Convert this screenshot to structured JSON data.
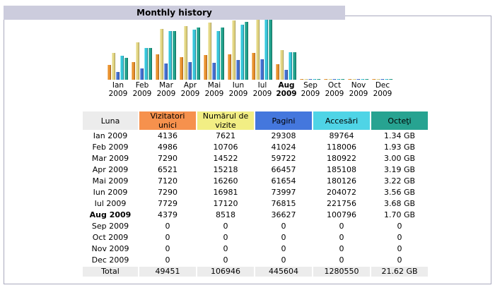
{
  "title": "Monthly history",
  "colors": {
    "tab_bg": "#CCCCDD",
    "panel_border": "#A9A9BE",
    "luna_header_bg": "#ECECEC",
    "total_row_bg": "#ECECEC"
  },
  "chart_data": {
    "type": "bar",
    "title": "Monthly history",
    "categories": [
      "Ian 2009",
      "Feb 2009",
      "Mar 2009",
      "Apr 2009",
      "Mai 2009",
      "Iun 2009",
      "Iul 2009",
      "Aug 2009",
      "Sep 2009",
      "Oct 2009",
      "Nov 2009",
      "Dec 2009"
    ],
    "highlight_category": "Aug 2009",
    "legend_position": "none",
    "grid": false,
    "series": [
      {
        "name": "Vizitatori unici",
        "scale_group": "visits",
        "color": "#E8912F",
        "light": "#F4BE7C",
        "dark": "#A5661D",
        "values": [
          4136,
          4986,
          7290,
          6521,
          7120,
          7290,
          7729,
          4379,
          0,
          0,
          0,
          0
        ]
      },
      {
        "name": "Numărul de vizite",
        "scale_group": "visits",
        "color": "#E2D584",
        "light": "#F4EFBE",
        "dark": "#A79B52",
        "values": [
          7621,
          10706,
          14522,
          15218,
          16260,
          16981,
          17120,
          8518,
          0,
          0,
          0,
          0
        ]
      },
      {
        "name": "Pagini",
        "scale_group": "hits",
        "color": "#4470D0",
        "light": "#8FAAE8",
        "dark": "#2A4789",
        "values": [
          29308,
          41024,
          59722,
          66457,
          61654,
          73997,
          76815,
          36627,
          0,
          0,
          0,
          0
        ]
      },
      {
        "name": "Accesări",
        "scale_group": "hits",
        "color": "#38C6DA",
        "light": "#8DE5F1",
        "dark": "#238292",
        "values": [
          89764,
          118006,
          180922,
          185108,
          180126,
          204072,
          221756,
          100796,
          0,
          0,
          0,
          0
        ]
      },
      {
        "name": "Octeţi (GB)",
        "scale_group": "bytes",
        "color": "#21A18C",
        "light": "#69C7B5",
        "dark": "#14705E",
        "values": [
          1.34,
          1.93,
          3.0,
          3.19,
          3.22,
          3.56,
          3.68,
          1.7,
          0,
          0,
          0,
          0
        ]
      }
    ]
  },
  "table": {
    "columns": [
      {
        "label": "Luna",
        "color": "#ECECEC"
      },
      {
        "label": "Vizitatori unici",
        "color": "#F6914D"
      },
      {
        "label": "Numărul de vizite",
        "color": "#F2EE84"
      },
      {
        "label": "Pagini",
        "color": "#4477DD"
      },
      {
        "label": "Accesări",
        "color": "#4FD4E6"
      },
      {
        "label": "Octeţi",
        "color": "#27A391"
      }
    ],
    "rows": [
      {
        "month": "Ian 2009",
        "bold": false,
        "values": [
          "4136",
          "7621",
          "29308",
          "89764",
          "1.34 GB"
        ]
      },
      {
        "month": "Feb 2009",
        "bold": false,
        "values": [
          "4986",
          "10706",
          "41024",
          "118006",
          "1.93 GB"
        ]
      },
      {
        "month": "Mar 2009",
        "bold": false,
        "values": [
          "7290",
          "14522",
          "59722",
          "180922",
          "3.00 GB"
        ]
      },
      {
        "month": "Apr 2009",
        "bold": false,
        "values": [
          "6521",
          "15218",
          "66457",
          "185108",
          "3.19 GB"
        ]
      },
      {
        "month": "Mai 2009",
        "bold": false,
        "values": [
          "7120",
          "16260",
          "61654",
          "180126",
          "3.22 GB"
        ]
      },
      {
        "month": "Iun 2009",
        "bold": false,
        "values": [
          "7290",
          "16981",
          "73997",
          "204072",
          "3.56 GB"
        ]
      },
      {
        "month": "Iul 2009",
        "bold": false,
        "values": [
          "7729",
          "17120",
          "76815",
          "221756",
          "3.68 GB"
        ]
      },
      {
        "month": "Aug 2009",
        "bold": true,
        "values": [
          "4379",
          "8518",
          "36627",
          "100796",
          "1.70 GB"
        ]
      },
      {
        "month": "Sep 2009",
        "bold": false,
        "values": [
          "0",
          "0",
          "0",
          "0",
          "0"
        ]
      },
      {
        "month": "Oct 2009",
        "bold": false,
        "values": [
          "0",
          "0",
          "0",
          "0",
          "0"
        ]
      },
      {
        "month": "Nov 2009",
        "bold": false,
        "values": [
          "0",
          "0",
          "0",
          "0",
          "0"
        ]
      },
      {
        "month": "Dec 2009",
        "bold": false,
        "values": [
          "0",
          "0",
          "0",
          "0",
          "0"
        ]
      }
    ],
    "total_row": {
      "label": "Total",
      "values": [
        "49451",
        "106946",
        "445604",
        "1280550",
        "21.62 GB"
      ]
    }
  }
}
